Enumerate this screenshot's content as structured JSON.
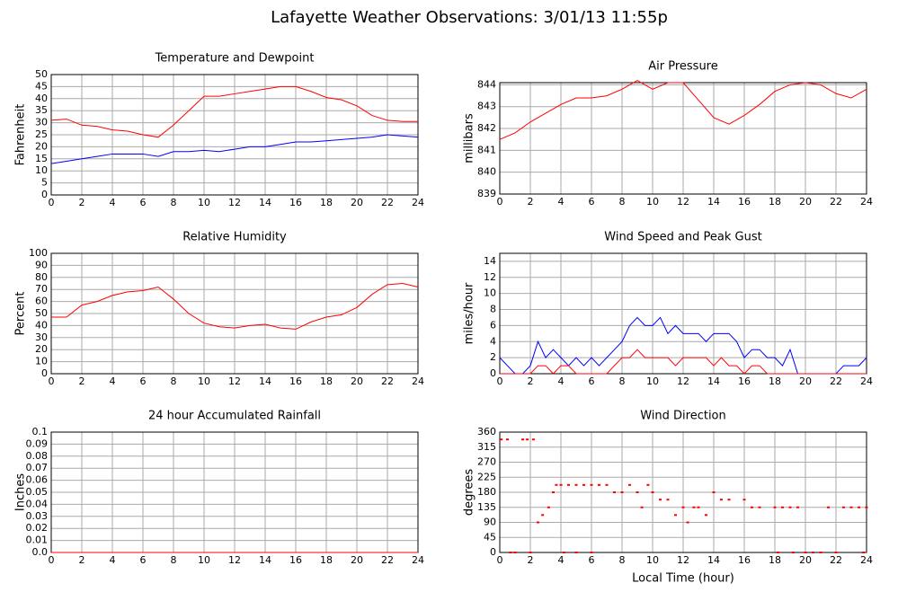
{
  "title": "Lafayette Weather Observations: 3/01/13 11:55p",
  "chart_data": [
    {
      "type": "line",
      "title": "Temperature and Dewpoint",
      "ylabel": "Fahrenheit",
      "x": [
        0,
        1,
        2,
        3,
        4,
        5,
        6,
        7,
        8,
        9,
        10,
        11,
        12,
        13,
        14,
        15,
        16,
        17,
        18,
        19,
        20,
        21,
        22,
        23,
        24
      ],
      "series": [
        {
          "color": "#ff0000",
          "values": [
            31,
            31.5,
            29,
            28.5,
            27,
            26.5,
            25,
            24,
            29,
            35,
            41,
            41,
            42,
            43,
            44,
            45,
            45,
            43,
            40.5,
            39.5,
            37,
            33,
            31,
            30.5,
            30.5
          ]
        },
        {
          "color": "#0000ff",
          "values": [
            13,
            14,
            15,
            16,
            17,
            17,
            17,
            16,
            18,
            18,
            18.5,
            18,
            19,
            20,
            20,
            21,
            22,
            22,
            22.5,
            23,
            23.5,
            24,
            25,
            24.5,
            24
          ]
        }
      ],
      "xlim": [
        0,
        24
      ],
      "xticks": [
        0,
        2,
        4,
        6,
        8,
        10,
        12,
        14,
        16,
        18,
        20,
        22,
        24
      ],
      "ylim": [
        0,
        50
      ],
      "yticks": [
        0,
        5,
        10,
        15,
        20,
        25,
        30,
        35,
        40,
        45,
        50
      ],
      "grid": true
    },
    {
      "type": "line",
      "title": "Air Pressure",
      "ylabel": "millibars",
      "x": [
        0,
        1,
        2,
        3,
        4,
        5,
        6,
        7,
        8,
        9,
        10,
        11,
        12,
        13,
        14,
        15,
        16,
        17,
        18,
        19,
        20,
        21,
        22,
        23,
        24
      ],
      "series": [
        {
          "color": "#ff0000",
          "values": [
            841.5,
            841.8,
            842.3,
            842.7,
            843.1,
            843.4,
            843.4,
            843.5,
            843.8,
            844.2,
            843.8,
            844.1,
            844.1,
            843.3,
            842.5,
            842.2,
            842.6,
            843.1,
            843.7,
            844.0,
            844.1,
            844.0,
            843.6,
            843.4,
            843.8
          ]
        }
      ],
      "xlim": [
        0,
        24
      ],
      "xticks": [
        0,
        2,
        4,
        6,
        8,
        10,
        12,
        14,
        16,
        18,
        20,
        22,
        24
      ],
      "ylim": [
        839,
        844.1
      ],
      "yticks": [
        839,
        840,
        841,
        842,
        843,
        844
      ],
      "grid": true
    },
    {
      "type": "line",
      "title": "Relative Humidity",
      "ylabel": "Percent",
      "x": [
        0,
        1,
        2,
        3,
        4,
        5,
        6,
        7,
        8,
        9,
        10,
        11,
        12,
        13,
        14,
        15,
        16,
        17,
        18,
        19,
        20,
        21,
        22,
        23,
        24
      ],
      "series": [
        {
          "color": "#ff0000",
          "values": [
            47,
            47,
            57,
            60,
            65,
            68,
            69,
            72,
            62,
            50,
            42,
            39,
            38,
            40,
            41,
            38,
            37,
            43,
            47,
            49,
            55,
            66,
            74,
            75,
            72
          ]
        }
      ],
      "xlim": [
        0,
        24
      ],
      "xticks": [
        0,
        2,
        4,
        6,
        8,
        10,
        12,
        14,
        16,
        18,
        20,
        22,
        24
      ],
      "ylim": [
        0,
        100
      ],
      "yticks": [
        0,
        10,
        20,
        30,
        40,
        50,
        60,
        70,
        80,
        90,
        100
      ],
      "grid": true
    },
    {
      "type": "line",
      "title": "Wind Speed and Peak Gust",
      "ylabel": "miles/hour",
      "x": [
        0,
        0.5,
        1,
        1.5,
        2,
        2.5,
        3,
        3.5,
        4,
        4.5,
        5,
        5.5,
        6,
        6.5,
        7,
        7.5,
        8,
        8.5,
        9,
        9.5,
        10,
        10.5,
        11,
        11.5,
        12,
        12.5,
        13,
        13.5,
        14,
        14.5,
        15,
        15.5,
        16,
        16.5,
        17,
        17.5,
        18,
        18.5,
        19,
        19.5,
        20,
        20.5,
        21,
        21.5,
        22,
        22.5,
        23,
        23.5,
        24
      ],
      "series": [
        {
          "color": "#0000ff",
          "values": [
            2,
            1,
            0,
            0,
            1,
            4,
            2,
            3,
            2,
            1,
            2,
            1,
            2,
            1,
            2,
            3,
            4,
            6,
            7,
            6,
            6,
            7,
            5,
            6,
            5,
            5,
            5,
            4,
            5,
            5,
            5,
            4,
            2,
            3,
            3,
            2,
            2,
            1,
            3,
            0,
            0,
            0,
            0,
            0,
            0,
            1,
            1,
            1,
            2
          ]
        },
        {
          "color": "#ff0000",
          "values": [
            0,
            0,
            0,
            0,
            0,
            1,
            1,
            0,
            1,
            1,
            0,
            0,
            0,
            0,
            0,
            1,
            2,
            2,
            3,
            2,
            2,
            2,
            2,
            1,
            2,
            2,
            2,
            2,
            1,
            2,
            1,
            1,
            0,
            1,
            1,
            0,
            0,
            0,
            0,
            0,
            0,
            0,
            0,
            0,
            0,
            0,
            0,
            0,
            0
          ]
        }
      ],
      "xlim": [
        0,
        24
      ],
      "xticks": [
        0,
        2,
        4,
        6,
        8,
        10,
        12,
        14,
        16,
        18,
        20,
        22,
        24
      ],
      "ylim": [
        0,
        15
      ],
      "yticks": [
        0,
        2,
        4,
        6,
        8,
        10,
        12,
        14
      ],
      "grid": true
    },
    {
      "type": "line",
      "title": "24 hour Accumulated Rainfall",
      "ylabel": "Inches",
      "x": [
        0,
        24
      ],
      "series": [
        {
          "color": "#ff0000",
          "values": [
            0,
            0
          ]
        }
      ],
      "xlim": [
        0,
        24
      ],
      "xticks": [
        0,
        2,
        4,
        6,
        8,
        10,
        12,
        14,
        16,
        18,
        20,
        22,
        24
      ],
      "ylim": [
        0,
        0.1
      ],
      "yticks": [
        {
          "value": 0,
          "label": "0.0"
        },
        0.01,
        0.02,
        0.03,
        0.04,
        0.05,
        0.06,
        0.07,
        0.08,
        0.09,
        0.1
      ],
      "grid": true
    },
    {
      "type": "scatter",
      "title": "Wind Direction",
      "ylabel": "degrees",
      "xlabel": "Local Time (hour)",
      "x": [
        0.1,
        0.5,
        1.5,
        1.8,
        2.2,
        0.7,
        1,
        2,
        2.5,
        2.8,
        3.2,
        3.5,
        3.7,
        4,
        4.5,
        5,
        5.5,
        6,
        6.5,
        7,
        7.5,
        8,
        8.5,
        9,
        9.3,
        9.7,
        10,
        10.5,
        11,
        11.5,
        12,
        12.3,
        12.7,
        13,
        13.5,
        14,
        14.5,
        15,
        16,
        16.5,
        17,
        18,
        18.5,
        19,
        19.5,
        18.2,
        19.2,
        20,
        20.5,
        21,
        22,
        21.5,
        22.5,
        23,
        23.5,
        24,
        4.2,
        5,
        6,
        23.8
      ],
      "series": [
        {
          "color": "#ff0000",
          "values": [
            338,
            338,
            338,
            338,
            338,
            0,
            0,
            0,
            90,
            112,
            135,
            180,
            202,
            202,
            202,
            202,
            202,
            202,
            202,
            202,
            180,
            180,
            202,
            180,
            135,
            202,
            180,
            158,
            158,
            112,
            135,
            90,
            135,
            135,
            112,
            180,
            158,
            158,
            158,
            135,
            135,
            135,
            135,
            135,
            135,
            0,
            0,
            0,
            0,
            0,
            0,
            135,
            135,
            135,
            135,
            135,
            0,
            0,
            0,
            0
          ]
        }
      ],
      "xlim": [
        0,
        24
      ],
      "xticks": [
        0,
        2,
        4,
        6,
        8,
        10,
        12,
        14,
        16,
        18,
        20,
        22,
        24
      ],
      "ylim": [
        0,
        360
      ],
      "yticks": [
        0,
        45,
        90,
        135,
        180,
        225,
        270,
        315,
        360
      ],
      "grid": true
    }
  ]
}
